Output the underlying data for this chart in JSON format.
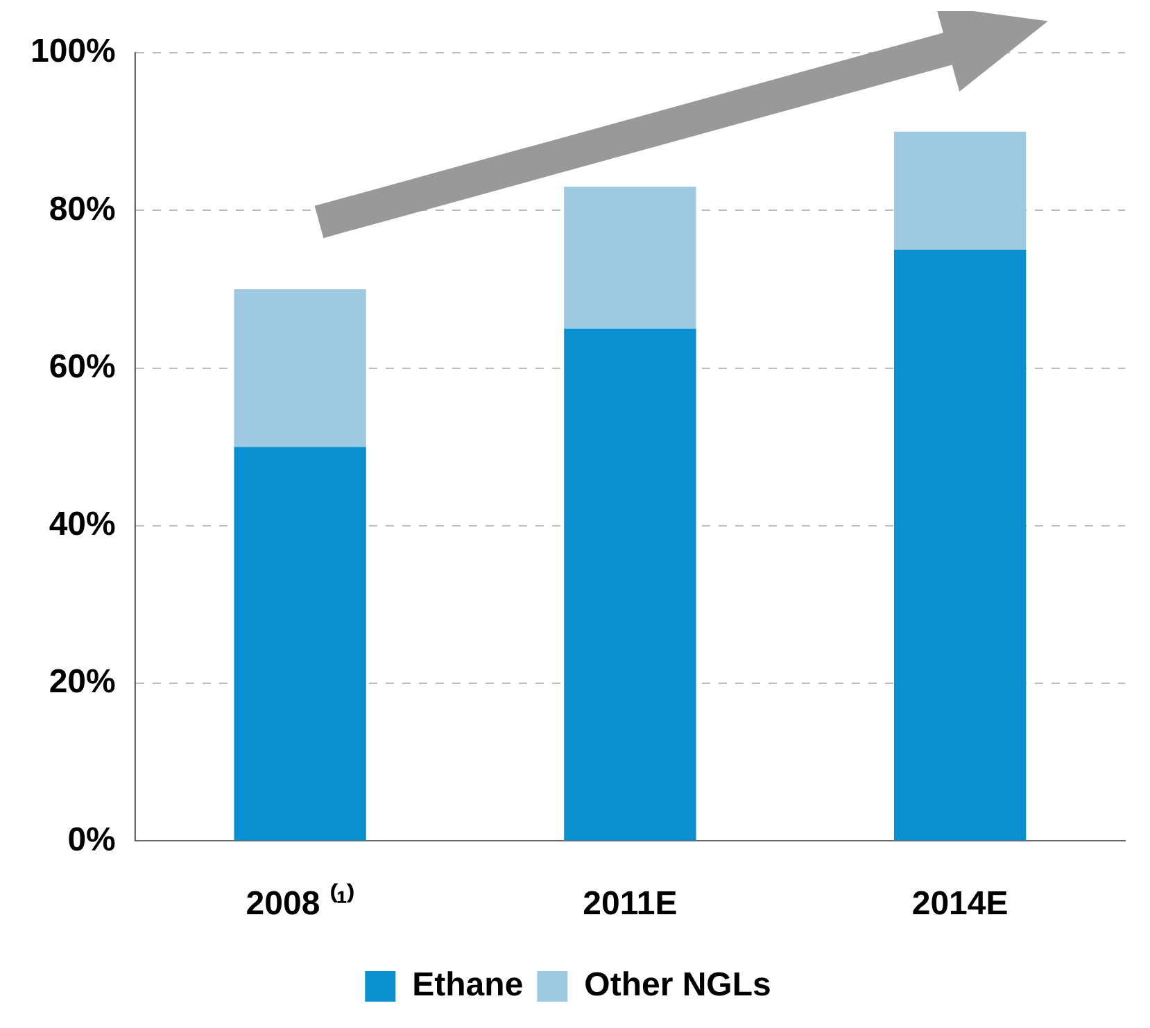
{
  "chart_data": {
    "type": "bar",
    "stacked": true,
    "categories": [
      "2008 ⁽¹⁾",
      "2011E",
      "2014E"
    ],
    "series": [
      {
        "name": "Ethane",
        "color": "#0a8fd0",
        "values": [
          50,
          65,
          75
        ]
      },
      {
        "name": "Other NGLs",
        "color": "#9dcae0",
        "values": [
          20,
          18,
          15
        ]
      }
    ],
    "ylim": [
      0,
      100
    ],
    "yticks": [
      {
        "value": 0,
        "label": "0%"
      },
      {
        "value": 20,
        "label": "20%"
      },
      {
        "value": 40,
        "label": "40%"
      },
      {
        "value": 60,
        "label": "60%"
      },
      {
        "value": 80,
        "label": "80%"
      },
      {
        "value": 100,
        "label": "100%"
      }
    ],
    "grid": "y",
    "legend": "bottom"
  }
}
